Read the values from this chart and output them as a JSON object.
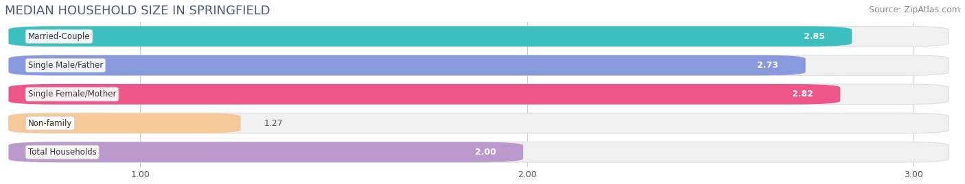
{
  "title": "MEDIAN HOUSEHOLD SIZE IN SPRINGFIELD",
  "source": "Source: ZipAtlas.com",
  "categories": [
    "Married-Couple",
    "Single Male/Father",
    "Single Female/Mother",
    "Non-family",
    "Total Households"
  ],
  "values": [
    2.85,
    2.73,
    2.82,
    1.27,
    2.0
  ],
  "bar_colors": [
    "#3dbfbf",
    "#8899dd",
    "#ee5588",
    "#f5c998",
    "#bb99cc"
  ],
  "xlim_min": 0.65,
  "xlim_max": 3.12,
  "xticks": [
    1.0,
    2.0,
    3.0
  ],
  "background_color": "#ffffff",
  "bar_bg_color": "#f0f0f0",
  "title_color": "#4a5a7a",
  "source_color": "#888888",
  "title_fontsize": 13,
  "source_fontsize": 9,
  "label_fontsize": 8.5,
  "value_fontsize": 9
}
